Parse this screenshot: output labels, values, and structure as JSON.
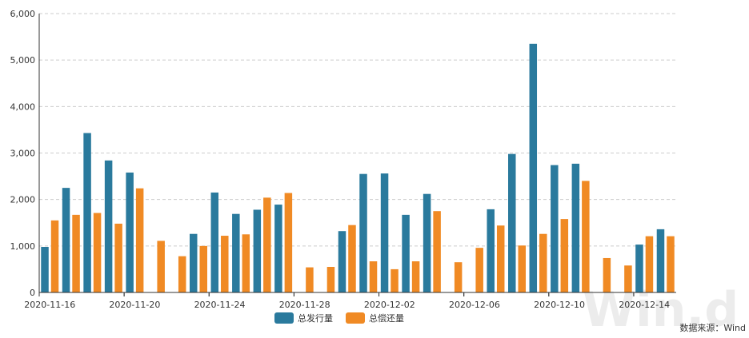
{
  "chart_data": {
    "type": "bar",
    "categories": [
      "2020-11-16",
      "2020-11-17",
      "2020-11-18",
      "2020-11-19",
      "2020-11-20",
      "2020-11-21",
      "2020-11-22",
      "2020-11-23",
      "2020-11-24",
      "2020-11-25",
      "2020-11-26",
      "2020-11-27",
      "2020-11-28",
      "2020-11-29",
      "2020-11-30",
      "2020-12-01",
      "2020-12-02",
      "2020-12-03",
      "2020-12-04",
      "2020-12-05",
      "2020-12-06",
      "2020-12-07",
      "2020-12-08",
      "2020-12-09",
      "2020-12-10",
      "2020-12-11",
      "2020-12-12",
      "2020-12-13",
      "2020-12-14",
      "2020-12-15"
    ],
    "x_tick_labels": [
      "2020-11-16",
      "2020-11-20",
      "2020-11-24",
      "2020-11-28",
      "2020-12-02",
      "2020-12-06",
      "2020-12-10",
      "2020-12-14"
    ],
    "series": [
      {
        "name": "总发行量",
        "color": "#2a7a9d",
        "values": [
          980,
          2250,
          3430,
          2840,
          2580,
          0,
          0,
          1260,
          2150,
          1690,
          1780,
          1890,
          0,
          0,
          1320,
          2550,
          2560,
          1670,
          2120,
          0,
          0,
          1790,
          2980,
          5350,
          2740,
          2770,
          0,
          0,
          1030,
          1360
        ]
      },
      {
        "name": "总偿还量",
        "color": "#f08a24",
        "values": [
          1550,
          1670,
          1710,
          1480,
          2240,
          1110,
          780,
          1000,
          1220,
          1250,
          2040,
          2140,
          540,
          550,
          1450,
          670,
          500,
          670,
          1750,
          650,
          960,
          1440,
          1010,
          1260,
          1580,
          2400,
          740,
          580,
          1210,
          1210
        ]
      }
    ],
    "ylim": [
      0,
      6000
    ],
    "y_ticks": [
      "0",
      "1,000",
      "2,000",
      "3,000",
      "4,000",
      "5,000",
      "6,000"
    ],
    "y_tick_values": [
      0,
      1000,
      2000,
      3000,
      4000,
      5000,
      6000
    ],
    "grid": true,
    "legend_position": "bottom-center",
    "source": "数据来源：Wind",
    "watermark": "Wind"
  }
}
